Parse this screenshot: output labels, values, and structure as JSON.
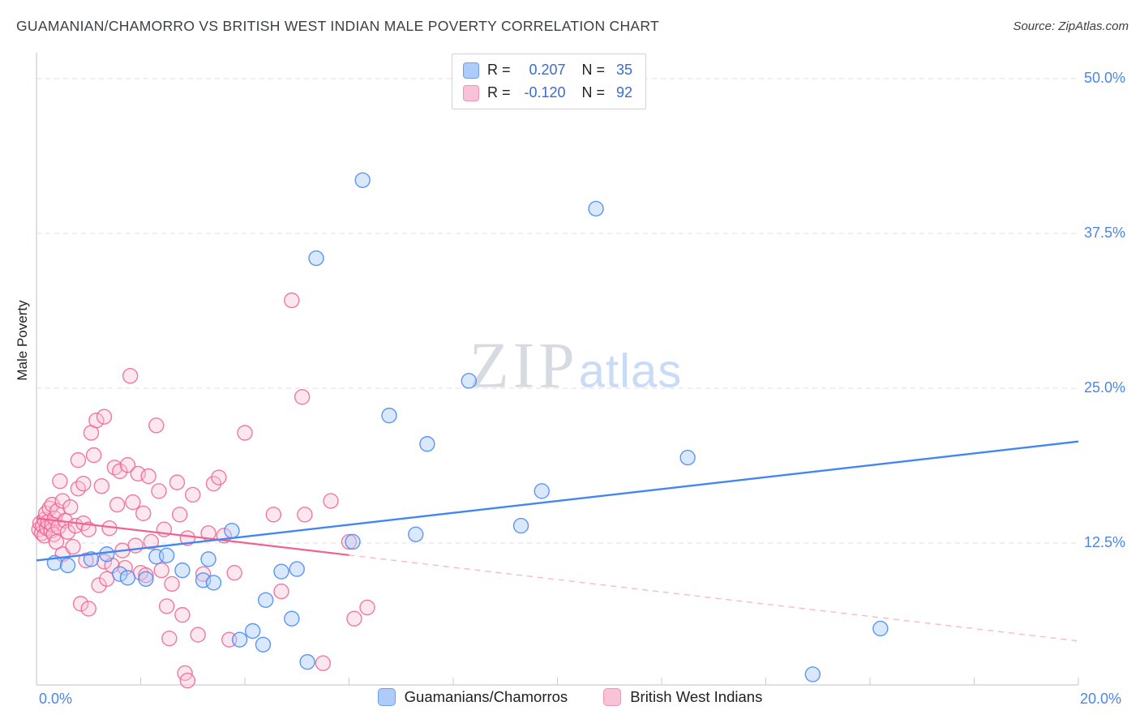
{
  "header": {
    "title": "GUAMANIAN/CHAMORRO VS BRITISH WEST INDIAN MALE POVERTY CORRELATION CHART",
    "source": "Source: ZipAtlas.com"
  },
  "watermark": {
    "zip": "ZIP",
    "atlas": "atlas"
  },
  "axes": {
    "y_label": "Male Poverty",
    "y_ticks": [
      "50.0%",
      "37.5%",
      "25.0%",
      "12.5%"
    ],
    "x_min_label": "0.0%",
    "x_max_label": "20.0%"
  },
  "legend_box": {
    "series": [
      {
        "r_label": "R =",
        "r_value": "0.207",
        "n_label": "N =",
        "n_value": "35"
      },
      {
        "r_label": "R =",
        "r_value": "-0.120",
        "n_label": "N =",
        "n_value": "92"
      }
    ]
  },
  "bottom_legend": [
    {
      "label": "Guamanians/Chamorros"
    },
    {
      "label": "British West Indians"
    }
  ],
  "chart_data": {
    "type": "scatter",
    "title": "GUAMANIAN/CHAMORRO VS BRITISH WEST INDIAN MALE POVERTY CORRELATION CHART",
    "xlabel": "",
    "ylabel": "Male Poverty",
    "x_unit": "%",
    "y_unit": "%",
    "xlim": [
      0,
      20
    ],
    "ylim": [
      0,
      52
    ],
    "y_gridlines": [
      12.5,
      25,
      37.5,
      50
    ],
    "x_tick_step": 2,
    "grid": true,
    "legend_position": "bottom",
    "series": [
      {
        "name": "Guamanians/Chamorros",
        "R": 0.207,
        "N": 35,
        "stroke": "#4285f4",
        "fill": "#aecbfa",
        "fill_opacity": 0.45,
        "trend": {
          "start": [
            0,
            11.1
          ],
          "end": [
            20,
            20.7
          ]
        },
        "points": [
          [
            0.35,
            10.9
          ],
          [
            0.6,
            10.7
          ],
          [
            1.05,
            11.2
          ],
          [
            1.35,
            11.6
          ],
          [
            1.6,
            10.0
          ],
          [
            1.75,
            9.7
          ],
          [
            2.1,
            9.6
          ],
          [
            2.3,
            11.4
          ],
          [
            2.5,
            11.5
          ],
          [
            2.8,
            10.3
          ],
          [
            3.2,
            9.5
          ],
          [
            3.3,
            11.2
          ],
          [
            3.4,
            9.3
          ],
          [
            3.75,
            13.5
          ],
          [
            3.9,
            4.7
          ],
          [
            4.15,
            5.4
          ],
          [
            4.35,
            4.3
          ],
          [
            4.4,
            7.9
          ],
          [
            4.7,
            10.2
          ],
          [
            4.9,
            6.4
          ],
          [
            5.0,
            10.4
          ],
          [
            5.2,
            2.9
          ],
          [
            5.37,
            35.5
          ],
          [
            6.07,
            12.6
          ],
          [
            6.26,
            41.8
          ],
          [
            6.77,
            22.8
          ],
          [
            7.28,
            13.2
          ],
          [
            7.5,
            20.5
          ],
          [
            8.3,
            25.6
          ],
          [
            9.3,
            13.9
          ],
          [
            9.7,
            16.7
          ],
          [
            10.74,
            39.5
          ],
          [
            12.5,
            19.4
          ],
          [
            14.9,
            1.9
          ],
          [
            16.2,
            5.6
          ]
        ]
      },
      {
        "name": "British West Indians",
        "R": -0.12,
        "N": 92,
        "stroke": "#f06292",
        "fill": "#f9c2d6",
        "fill_opacity": 0.4,
        "trend": {
          "start": [
            0,
            14.5
          ],
          "end": [
            20,
            4.6
          ],
          "solid_until_x": 6
        },
        "points": [
          [
            0.05,
            13.6
          ],
          [
            0.07,
            14.1
          ],
          [
            0.1,
            13.3
          ],
          [
            0.12,
            13.9
          ],
          [
            0.15,
            14.4
          ],
          [
            0.15,
            13.1
          ],
          [
            0.18,
            14.9
          ],
          [
            0.2,
            13.7
          ],
          [
            0.22,
            14.2
          ],
          [
            0.25,
            15.3
          ],
          [
            0.28,
            13.5
          ],
          [
            0.3,
            14.0
          ],
          [
            0.3,
            15.6
          ],
          [
            0.33,
            13.2
          ],
          [
            0.35,
            14.5
          ],
          [
            0.38,
            12.6
          ],
          [
            0.4,
            15.1
          ],
          [
            0.42,
            13.8
          ],
          [
            0.45,
            17.5
          ],
          [
            0.5,
            15.9
          ],
          [
            0.5,
            11.6
          ],
          [
            0.55,
            14.3
          ],
          [
            0.6,
            13.4
          ],
          [
            0.65,
            15.4
          ],
          [
            0.7,
            12.2
          ],
          [
            0.75,
            13.9
          ],
          [
            0.8,
            19.2
          ],
          [
            0.8,
            16.9
          ],
          [
            0.85,
            7.6
          ],
          [
            0.9,
            14.1
          ],
          [
            0.9,
            17.3
          ],
          [
            0.95,
            11.1
          ],
          [
            1.0,
            13.6
          ],
          [
            1.0,
            7.2
          ],
          [
            1.05,
            21.4
          ],
          [
            1.1,
            19.6
          ],
          [
            1.15,
            22.4
          ],
          [
            1.2,
            9.1
          ],
          [
            1.25,
            17.1
          ],
          [
            1.3,
            22.7
          ],
          [
            1.3,
            11.0
          ],
          [
            1.35,
            9.6
          ],
          [
            1.4,
            13.7
          ],
          [
            1.45,
            10.7
          ],
          [
            1.5,
            18.6
          ],
          [
            1.55,
            15.6
          ],
          [
            1.6,
            18.3
          ],
          [
            1.65,
            11.9
          ],
          [
            1.7,
            10.5
          ],
          [
            1.75,
            18.8
          ],
          [
            1.8,
            26.0
          ],
          [
            1.85,
            15.8
          ],
          [
            1.9,
            12.3
          ],
          [
            1.95,
            18.1
          ],
          [
            2.0,
            10.1
          ],
          [
            2.05,
            14.9
          ],
          [
            2.1,
            9.9
          ],
          [
            2.15,
            17.9
          ],
          [
            2.2,
            12.6
          ],
          [
            2.3,
            22.0
          ],
          [
            2.35,
            16.7
          ],
          [
            2.4,
            10.3
          ],
          [
            2.45,
            13.6
          ],
          [
            2.5,
            7.4
          ],
          [
            2.55,
            4.8
          ],
          [
            2.6,
            9.2
          ],
          [
            2.7,
            17.4
          ],
          [
            2.75,
            14.8
          ],
          [
            2.8,
            6.7
          ],
          [
            2.85,
            2.0
          ],
          [
            2.9,
            1.4
          ],
          [
            2.9,
            12.9
          ],
          [
            3.0,
            16.4
          ],
          [
            3.1,
            5.1
          ],
          [
            3.2,
            10.0
          ],
          [
            3.3,
            13.3
          ],
          [
            3.4,
            17.3
          ],
          [
            3.5,
            17.8
          ],
          [
            3.6,
            13.1
          ],
          [
            3.7,
            4.7
          ],
          [
            3.8,
            10.1
          ],
          [
            4.0,
            21.4
          ],
          [
            4.55,
            14.8
          ],
          [
            4.7,
            8.6
          ],
          [
            4.9,
            32.1
          ],
          [
            5.1,
            24.3
          ],
          [
            5.15,
            14.8
          ],
          [
            5.5,
            2.8
          ],
          [
            5.65,
            15.9
          ],
          [
            6.0,
            12.6
          ],
          [
            6.1,
            6.4
          ],
          [
            6.35,
            7.3
          ]
        ]
      }
    ]
  }
}
